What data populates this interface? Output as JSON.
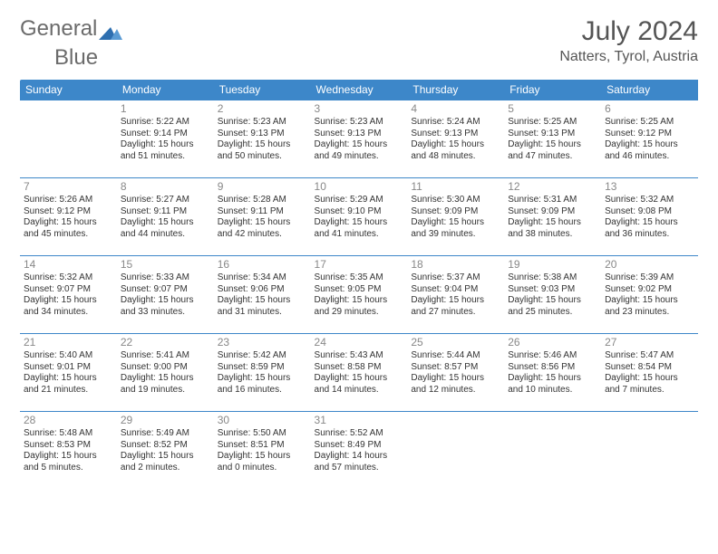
{
  "logo": {
    "text1": "General",
    "text2": "Blue"
  },
  "title": "July 2024",
  "location": "Natters, Tyrol, Austria",
  "colors": {
    "header_bg": "#3d87c9",
    "header_text": "#ffffff",
    "border": "#3d87c9",
    "daynum": "#888888",
    "body_text": "#333333",
    "logo_gray": "#6b6b6b"
  },
  "fonts": {
    "title_size": 30,
    "location_size": 16,
    "header_size": 12,
    "cell_size": 10,
    "daynum_size": 12
  },
  "daynames": [
    "Sunday",
    "Monday",
    "Tuesday",
    "Wednesday",
    "Thursday",
    "Friday",
    "Saturday"
  ],
  "weeks": [
    [
      null,
      {
        "n": "1",
        "sr": "5:22 AM",
        "ss": "9:14 PM",
        "dl": "15 hours and 51 minutes."
      },
      {
        "n": "2",
        "sr": "5:23 AM",
        "ss": "9:13 PM",
        "dl": "15 hours and 50 minutes."
      },
      {
        "n": "3",
        "sr": "5:23 AM",
        "ss": "9:13 PM",
        "dl": "15 hours and 49 minutes."
      },
      {
        "n": "4",
        "sr": "5:24 AM",
        "ss": "9:13 PM",
        "dl": "15 hours and 48 minutes."
      },
      {
        "n": "5",
        "sr": "5:25 AM",
        "ss": "9:13 PM",
        "dl": "15 hours and 47 minutes."
      },
      {
        "n": "6",
        "sr": "5:25 AM",
        "ss": "9:12 PM",
        "dl": "15 hours and 46 minutes."
      }
    ],
    [
      {
        "n": "7",
        "sr": "5:26 AM",
        "ss": "9:12 PM",
        "dl": "15 hours and 45 minutes."
      },
      {
        "n": "8",
        "sr": "5:27 AM",
        "ss": "9:11 PM",
        "dl": "15 hours and 44 minutes."
      },
      {
        "n": "9",
        "sr": "5:28 AM",
        "ss": "9:11 PM",
        "dl": "15 hours and 42 minutes."
      },
      {
        "n": "10",
        "sr": "5:29 AM",
        "ss": "9:10 PM",
        "dl": "15 hours and 41 minutes."
      },
      {
        "n": "11",
        "sr": "5:30 AM",
        "ss": "9:09 PM",
        "dl": "15 hours and 39 minutes."
      },
      {
        "n": "12",
        "sr": "5:31 AM",
        "ss": "9:09 PM",
        "dl": "15 hours and 38 minutes."
      },
      {
        "n": "13",
        "sr": "5:32 AM",
        "ss": "9:08 PM",
        "dl": "15 hours and 36 minutes."
      }
    ],
    [
      {
        "n": "14",
        "sr": "5:32 AM",
        "ss": "9:07 PM",
        "dl": "15 hours and 34 minutes."
      },
      {
        "n": "15",
        "sr": "5:33 AM",
        "ss": "9:07 PM",
        "dl": "15 hours and 33 minutes."
      },
      {
        "n": "16",
        "sr": "5:34 AM",
        "ss": "9:06 PM",
        "dl": "15 hours and 31 minutes."
      },
      {
        "n": "17",
        "sr": "5:35 AM",
        "ss": "9:05 PM",
        "dl": "15 hours and 29 minutes."
      },
      {
        "n": "18",
        "sr": "5:37 AM",
        "ss": "9:04 PM",
        "dl": "15 hours and 27 minutes."
      },
      {
        "n": "19",
        "sr": "5:38 AM",
        "ss": "9:03 PM",
        "dl": "15 hours and 25 minutes."
      },
      {
        "n": "20",
        "sr": "5:39 AM",
        "ss": "9:02 PM",
        "dl": "15 hours and 23 minutes."
      }
    ],
    [
      {
        "n": "21",
        "sr": "5:40 AM",
        "ss": "9:01 PM",
        "dl": "15 hours and 21 minutes."
      },
      {
        "n": "22",
        "sr": "5:41 AM",
        "ss": "9:00 PM",
        "dl": "15 hours and 19 minutes."
      },
      {
        "n": "23",
        "sr": "5:42 AM",
        "ss": "8:59 PM",
        "dl": "15 hours and 16 minutes."
      },
      {
        "n": "24",
        "sr": "5:43 AM",
        "ss": "8:58 PM",
        "dl": "15 hours and 14 minutes."
      },
      {
        "n": "25",
        "sr": "5:44 AM",
        "ss": "8:57 PM",
        "dl": "15 hours and 12 minutes."
      },
      {
        "n": "26",
        "sr": "5:46 AM",
        "ss": "8:56 PM",
        "dl": "15 hours and 10 minutes."
      },
      {
        "n": "27",
        "sr": "5:47 AM",
        "ss": "8:54 PM",
        "dl": "15 hours and 7 minutes."
      }
    ],
    [
      {
        "n": "28",
        "sr": "5:48 AM",
        "ss": "8:53 PM",
        "dl": "15 hours and 5 minutes."
      },
      {
        "n": "29",
        "sr": "5:49 AM",
        "ss": "8:52 PM",
        "dl": "15 hours and 2 minutes."
      },
      {
        "n": "30",
        "sr": "5:50 AM",
        "ss": "8:51 PM",
        "dl": "15 hours and 0 minutes."
      },
      {
        "n": "31",
        "sr": "5:52 AM",
        "ss": "8:49 PM",
        "dl": "14 hours and 57 minutes."
      },
      null,
      null,
      null
    ]
  ],
  "labels": {
    "sunrise": "Sunrise:",
    "sunset": "Sunset:",
    "daylight": "Daylight:"
  }
}
